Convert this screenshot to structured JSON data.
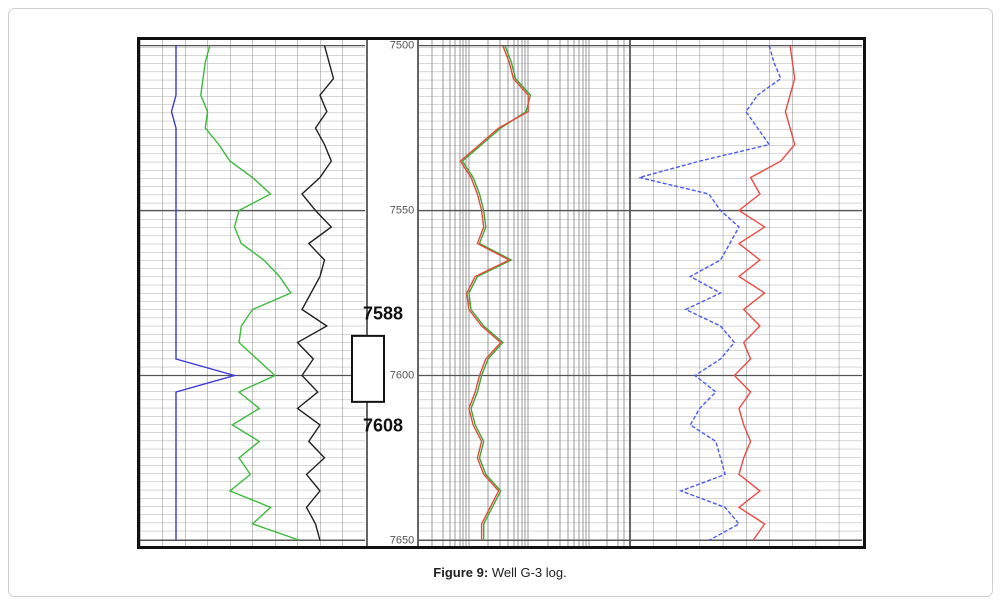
{
  "chart_data": {
    "type": "well-log",
    "ylim": [
      7498,
      7652
    ],
    "yticks": [
      7500,
      7550,
      7600,
      7650
    ],
    "depths": [
      7500,
      7505,
      7510,
      7515,
      7520,
      7525,
      7530,
      7535,
      7540,
      7545,
      7550,
      7555,
      7560,
      7565,
      7570,
      7575,
      7580,
      7585,
      7590,
      7595,
      7600,
      7605,
      7610,
      7615,
      7620,
      7625,
      7630,
      7635,
      7640,
      7645,
      7650
    ],
    "tracks": [
      {
        "xlim": [
          0,
          100
        ],
        "series": [
          {
            "color": "#3b3bd6",
            "values": [
              16,
              16,
              16,
              16,
              14,
              16,
              16,
              16,
              16,
              16,
              16,
              16,
              16,
              16,
              16,
              16,
              16,
              16,
              16,
              16,
              42,
              16,
              16,
              16,
              16,
              16,
              16,
              16,
              16,
              16,
              16
            ]
          },
          {
            "color": "#3dbb3d",
            "values": [
              31,
              29,
              28,
              27,
              30,
              29,
              35,
              40,
              50,
              58,
              44,
              42,
              45,
              55,
              62,
              67,
              50,
              45,
              44,
              52,
              60,
              44,
              53,
              41,
              53,
              44,
              49,
              40,
              58,
              50,
              71
            ]
          },
          {
            "color": "#222222",
            "values": [
              82,
              84,
              86,
              80,
              83,
              78,
              82,
              85,
              80,
              72,
              78,
              85,
              75,
              82,
              80,
              76,
              72,
              83,
              70,
              77,
              72,
              79,
              70,
              80,
              75,
              82,
              74,
              80,
              74,
              78,
              80
            ]
          }
        ]
      },
      {
        "xlim": [
          0,
          100
        ],
        "series": [
          {
            "color": "#3aaa3a",
            "values": [
              41,
              44,
              46,
              53,
              51,
              39,
              30,
              21,
              26,
              29,
              31,
              32,
              29,
              44,
              28,
              24,
              25,
              31,
              40,
              33,
              30,
              28,
              25,
              27,
              31,
              29,
              32,
              39,
              35,
              31,
              31
            ]
          },
          {
            "color": "#e84a3a",
            "values": [
              40,
              43,
              45,
              52,
              52,
              38,
              29,
              20,
              25,
              28,
              30,
              31,
              28,
              43,
              27,
              23,
              24,
              30,
              39,
              32,
              29,
              27,
              24,
              26,
              30,
              28,
              31,
              38,
              34,
              30,
              30
            ]
          }
        ]
      },
      {
        "xlim": [
          0,
          100
        ],
        "series": [
          {
            "color": "#4b5bf0",
            "dash": true,
            "values": [
              60,
              62,
              65,
              55,
              50,
              55,
              60,
              30,
              4,
              34,
              39,
              47,
              43,
              39,
              26,
              39,
              24,
              39,
              45,
              39,
              28,
              37,
              30,
              26,
              37,
              39,
              41,
              22,
              41,
              47,
              34
            ]
          },
          {
            "color": "#ee4a44",
            "values": [
              69,
              70,
              71,
              69,
              67,
              69,
              71,
              65,
              52,
              56,
              47,
              58,
              47,
              56,
              47,
              58,
              49,
              56,
              49,
              52,
              45,
              52,
              47,
              49,
              52,
              49,
              47,
              56,
              47,
              58,
              53
            ]
          }
        ]
      }
    ],
    "annotations": [
      7588,
      7608
    ],
    "caption": {
      "label": "Figure 9:",
      "text": "Well G-3 log."
    }
  }
}
